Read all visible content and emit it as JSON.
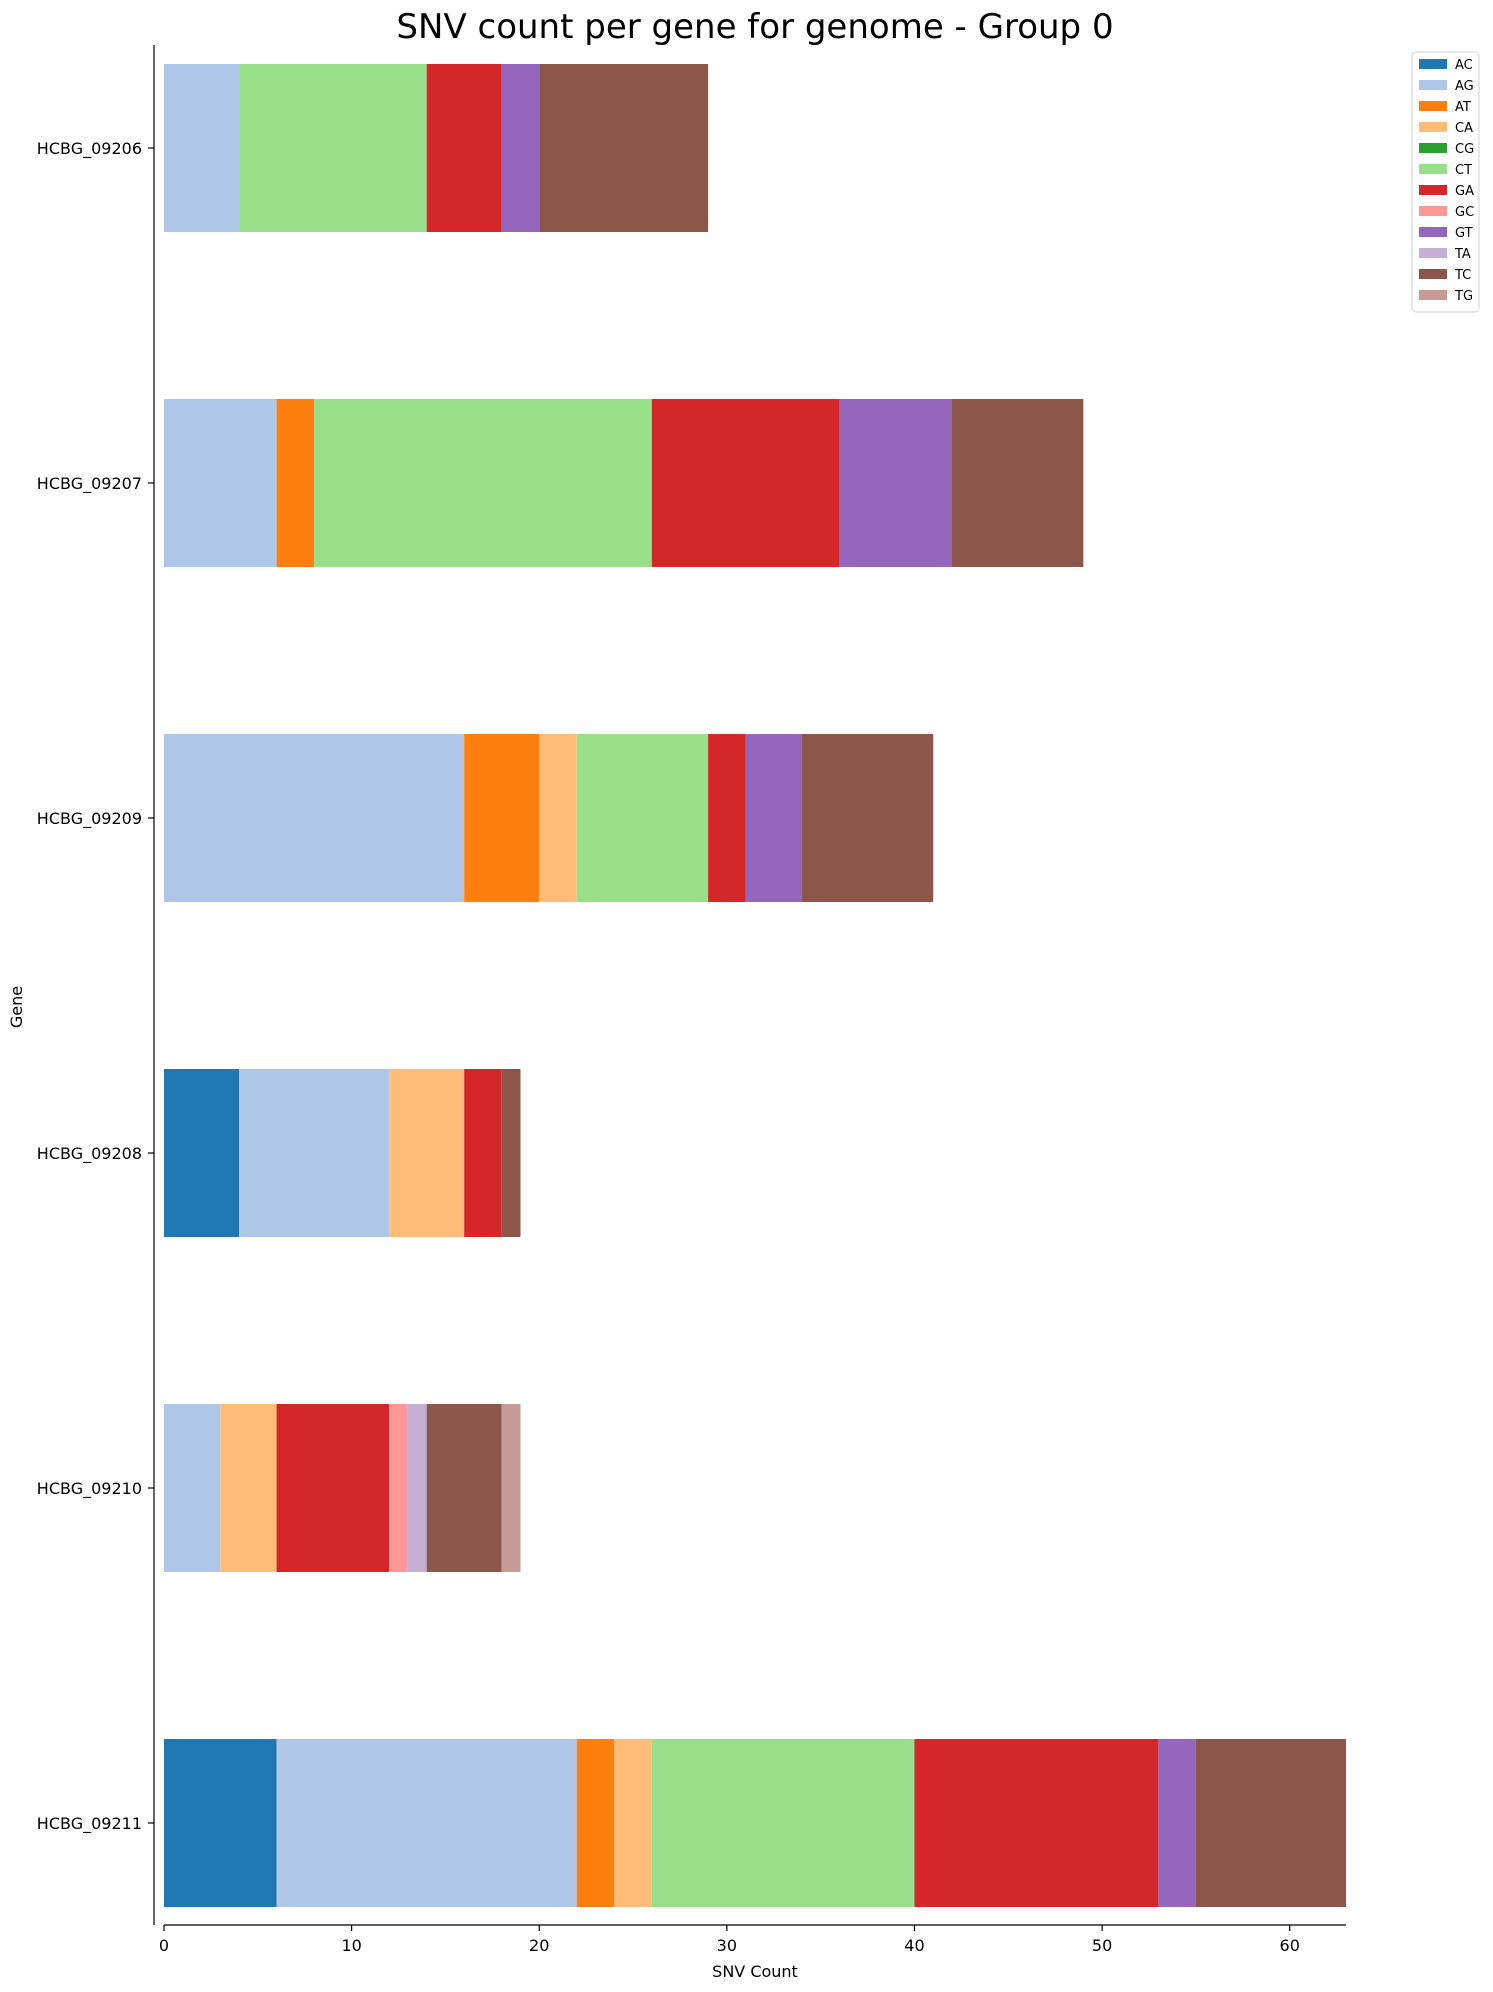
{
  "chart_data": {
    "type": "bar",
    "orientation": "horizontal",
    "stacked": true,
    "title": "SNV count per gene for genome - Group 0",
    "xlabel": "SNV Count",
    "ylabel": "Gene",
    "xlim": [
      0,
      63
    ],
    "xticks": [
      0,
      10,
      20,
      30,
      40,
      50,
      60
    ],
    "legend_position": "top-right",
    "grid": false,
    "categories": [
      "HCBG_09206",
      "HCBG_09207",
      "HCBG_09209",
      "HCBG_09208",
      "HCBG_09210",
      "HCBG_09211"
    ],
    "series": [
      {
        "name": "AC",
        "color": "#1f77b4",
        "values": [
          0,
          0,
          0,
          4,
          0,
          6
        ]
      },
      {
        "name": "AG",
        "color": "#aec7e8",
        "values": [
          4,
          6,
          16,
          8,
          3,
          16
        ]
      },
      {
        "name": "AT",
        "color": "#ff7f0e",
        "values": [
          0,
          2,
          4,
          0,
          0,
          2
        ]
      },
      {
        "name": "CA",
        "color": "#ffbb78",
        "values": [
          0,
          0,
          2,
          4,
          3,
          2
        ]
      },
      {
        "name": "CG",
        "color": "#2ca02c",
        "values": [
          0,
          0,
          0,
          0,
          0,
          0
        ]
      },
      {
        "name": "CT",
        "color": "#98df8a",
        "values": [
          10,
          18,
          7,
          0,
          0,
          14
        ]
      },
      {
        "name": "GA",
        "color": "#d62728",
        "values": [
          4,
          10,
          2,
          2,
          6,
          13
        ]
      },
      {
        "name": "GC",
        "color": "#ff9896",
        "values": [
          0,
          0,
          0,
          0,
          1,
          0
        ]
      },
      {
        "name": "GT",
        "color": "#9467bd",
        "values": [
          2,
          6,
          3,
          0,
          0,
          2
        ]
      },
      {
        "name": "TA",
        "color": "#c5b0d5",
        "values": [
          0,
          0,
          0,
          0,
          1,
          0
        ]
      },
      {
        "name": "TC",
        "color": "#8c564b",
        "values": [
          9,
          7,
          7,
          1,
          4,
          8
        ]
      },
      {
        "name": "TG",
        "color": "#c49c94",
        "values": [
          0,
          0,
          0,
          0,
          1,
          0
        ]
      }
    ]
  }
}
